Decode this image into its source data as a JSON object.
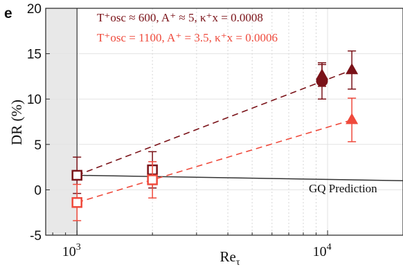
{
  "chart_data": {
    "type": "scatter",
    "panel_label": "e",
    "xlabel": "Re",
    "xlabel_sub": "τ",
    "ylabel": "DR (%)",
    "xscale": "log",
    "xlim": [
      750,
      20000
    ],
    "ylim": [
      -5,
      20
    ],
    "yticks": [
      "-5",
      "0",
      "5",
      "10",
      "15",
      "20"
    ],
    "xtick_labels": [
      {
        "value": 1000,
        "base": "10",
        "exp": "3"
      },
      {
        "value": 10000,
        "base": "10",
        "exp": "4"
      }
    ],
    "shaded_region": {
      "x_from": 750,
      "x_to": 1000,
      "color": "#e8e8e8"
    },
    "grid": "on",
    "legend": [
      {
        "label": "T⁺osc ≈ 600, A⁺ ≈ 5, κ⁺x = 0.0008",
        "color": "#7a1218"
      },
      {
        "label": "T⁺osc = 1100, A⁺ = 3.5, κ⁺x = 0.0006",
        "color": "#ef4a3c"
      }
    ],
    "legend_position": "top-left",
    "series": [
      {
        "color": "#7a1218",
        "points": [
          {
            "x": 1000,
            "y": 1.6,
            "err": 2.0,
            "marker": "square-open"
          },
          {
            "x": 2000,
            "y": 2.2,
            "err": 2.0,
            "marker": "square-open"
          },
          {
            "x": 9500,
            "y": 12.0,
            "err": 2.0,
            "marker": "circle"
          },
          {
            "x": 9500,
            "y": 12.6,
            "err": 1.2,
            "marker": "triangle"
          },
          {
            "x": 12500,
            "y": 13.2,
            "err": 2.1,
            "marker": "triangle"
          }
        ],
        "fit_line": {
          "x": [
            1000,
            12500
          ],
          "y": [
            1.6,
            13.2
          ],
          "style": "dashed"
        }
      },
      {
        "color": "#ef4a3c",
        "points": [
          {
            "x": 1000,
            "y": -1.4,
            "err": 2.0,
            "marker": "square-open"
          },
          {
            "x": 2000,
            "y": 1.1,
            "err": 2.0,
            "marker": "square-open"
          },
          {
            "x": 12500,
            "y": 7.7,
            "err": 2.4,
            "marker": "triangle"
          }
        ],
        "fit_line": {
          "x": [
            1000,
            12500
          ],
          "y": [
            -1.4,
            7.7
          ],
          "style": "dashed"
        }
      }
    ],
    "reference_line": {
      "label": "GQ Prediction",
      "color": "#333333",
      "x": [
        1000,
        20000
      ],
      "y": [
        1.6,
        1.0
      ]
    }
  }
}
